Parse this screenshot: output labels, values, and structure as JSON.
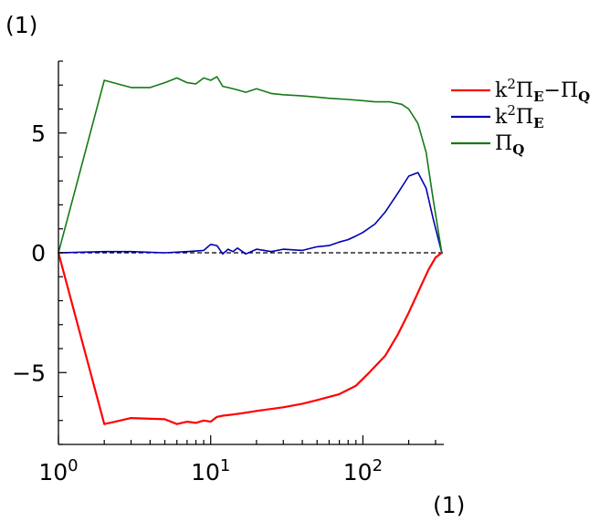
{
  "chart_data": {
    "type": "line",
    "x_scale": "log",
    "xlim": [
      1,
      340
    ],
    "ylim": [
      -8,
      8
    ],
    "grid": false,
    "legend_position": "top-right",
    "ylabel": "(1)",
    "xlabel": "(1)",
    "x_ticks": [
      {
        "value": 1,
        "base": "10",
        "exp": "0"
      },
      {
        "value": 10,
        "base": "10",
        "exp": "1"
      },
      {
        "value": 100,
        "base": "10",
        "exp": "2"
      }
    ],
    "y_ticks": [
      {
        "value": 5,
        "label": "5"
      },
      {
        "value": 0,
        "label": "0"
      },
      {
        "value": -5,
        "label": "−5"
      }
    ],
    "reference_line": {
      "y": 0,
      "style": "dashed",
      "color": "#000000"
    },
    "series": [
      {
        "key": "diff",
        "legend": {
          "base": "k",
          "sup": "2",
          "mid": "Π",
          "sub": "E",
          "op": "−",
          "tail": "Π",
          "tail_sub": "Q"
        },
        "color": "#ff0000",
        "width": 2.2,
        "x": [
          1,
          2,
          3,
          5,
          6,
          7,
          8,
          9,
          10,
          11,
          12,
          14,
          16,
          20,
          30,
          40,
          50,
          70,
          90,
          110,
          140,
          170,
          200,
          240,
          270,
          300,
          330
        ],
        "y": [
          0,
          -7.15,
          -6.9,
          -6.95,
          -7.15,
          -7.05,
          -7.1,
          -7.0,
          -7.05,
          -6.85,
          -6.8,
          -6.75,
          -6.7,
          -6.6,
          -6.45,
          -6.3,
          -6.15,
          -5.9,
          -5.55,
          -5.0,
          -4.3,
          -3.4,
          -2.5,
          -1.4,
          -0.7,
          -0.2,
          0
        ]
      },
      {
        "key": "ke",
        "legend": {
          "base": "k",
          "sup": "2",
          "mid": "Π",
          "sub": "E"
        },
        "color": "#0000b4",
        "width": 1.6,
        "x": [
          1,
          2,
          3,
          5,
          7,
          9,
          10,
          11,
          12,
          13,
          14,
          15,
          17,
          20,
          25,
          30,
          40,
          50,
          60,
          70,
          80,
          90,
          100,
          120,
          140,
          170,
          200,
          230,
          260,
          290,
          330
        ],
        "y": [
          0,
          0.05,
          0.05,
          0.0,
          0.05,
          0.1,
          0.35,
          0.3,
          -0.05,
          0.15,
          0.05,
          0.2,
          -0.05,
          0.15,
          0.05,
          0.15,
          0.1,
          0.25,
          0.3,
          0.45,
          0.55,
          0.7,
          0.85,
          1.2,
          1.7,
          2.5,
          3.2,
          3.35,
          2.7,
          1.4,
          0
        ]
      },
      {
        "key": "pq",
        "legend": {
          "base": "Π",
          "sub": "Q"
        },
        "color": "#157a15",
        "width": 1.6,
        "x": [
          1,
          2,
          3,
          4,
          5,
          6,
          7,
          8,
          9,
          10,
          11,
          12,
          13,
          15,
          17,
          20,
          25,
          30,
          40,
          50,
          60,
          80,
          100,
          120,
          150,
          180,
          200,
          230,
          260,
          290,
          330
        ],
        "y": [
          0,
          7.2,
          6.9,
          6.9,
          7.1,
          7.3,
          7.1,
          7.05,
          7.3,
          7.2,
          7.35,
          6.95,
          6.9,
          6.8,
          6.7,
          6.85,
          6.65,
          6.6,
          6.55,
          6.5,
          6.45,
          6.4,
          6.35,
          6.3,
          6.3,
          6.2,
          6.0,
          5.4,
          4.2,
          2.2,
          0
        ]
      }
    ]
  }
}
